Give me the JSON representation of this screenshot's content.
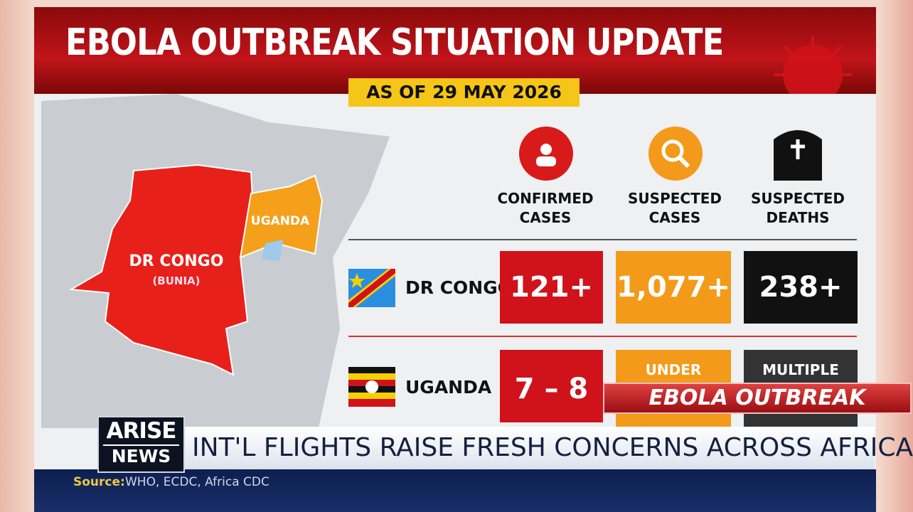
{
  "header": {
    "title": "EBOLA OUTBREAK SITUATION UPDATE",
    "date": "AS OF 29 MAY 2026"
  },
  "map": {
    "labels": [
      "DR CONGO",
      "(BUNIA)",
      "UGANDA"
    ]
  },
  "table": {
    "columns": [
      "CONFIRMED CASES",
      "SUSPECTED CASES",
      "SUSPECTED DEATHS"
    ],
    "rows": [
      {
        "country": "DR CONGO",
        "cells": [
          "121+",
          "1,077+",
          "238+"
        ]
      },
      {
        "country": "UGANDA",
        "cells": [
          "7 – 8",
          "UNDER",
          "MULTIPLE"
        ]
      }
    ]
  },
  "ticker": "EBOLA OUTBREAK",
  "logo": [
    "ARISE",
    "NEWS"
  ],
  "headline": "INT'L FLIGHTS RAISE FRESH CONCERNS ACROSS AFRICA",
  "source": {
    "label": "Source:",
    "text": "WHO, ECDC, Africa CDC"
  }
}
